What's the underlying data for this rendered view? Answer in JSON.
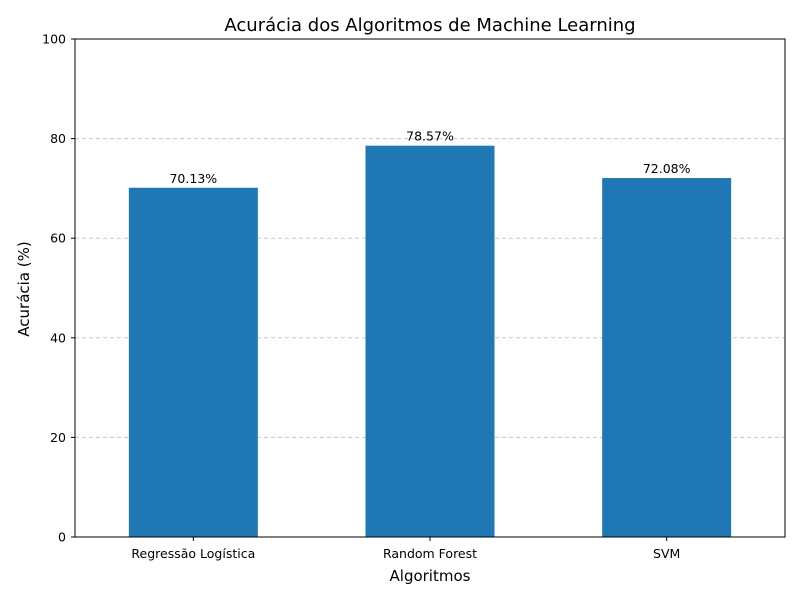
{
  "chart_data": {
    "type": "bar",
    "title": "Acurácia dos Algoritmos de Machine Learning",
    "xlabel": "Algoritmos",
    "ylabel": "Acurácia (%)",
    "categories": [
      "Regressão Logística",
      "Random Forest",
      "SVM"
    ],
    "values": [
      70.13,
      78.57,
      72.08
    ],
    "data_labels": [
      "70.13%",
      "78.57%",
      "72.08%"
    ],
    "ylim": [
      0,
      100
    ],
    "yticks": [
      0,
      20,
      40,
      60,
      80,
      100
    ],
    "ytick_labels": [
      "0",
      "20",
      "40",
      "60",
      "80",
      "100"
    ],
    "grid": "y-axis dashed",
    "legend": "none",
    "colors": {
      "bar": "#1f77b4",
      "grid": "#c8c8c8",
      "axis": "#000000"
    }
  }
}
